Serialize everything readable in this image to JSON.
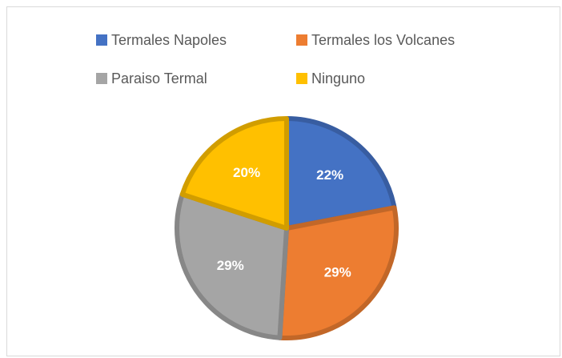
{
  "chart_data": {
    "type": "pie",
    "categories": [
      "Termales Napoles",
      "Termales los Volcanes",
      "Paraiso Termal",
      "Ninguno"
    ],
    "values": [
      22,
      29,
      29,
      20
    ],
    "value_labels": [
      "22%",
      "29%",
      "29%",
      "20%"
    ],
    "colors": [
      "#4472c4",
      "#ed7d31",
      "#a5a5a5",
      "#ffc000"
    ],
    "legend": "top"
  }
}
